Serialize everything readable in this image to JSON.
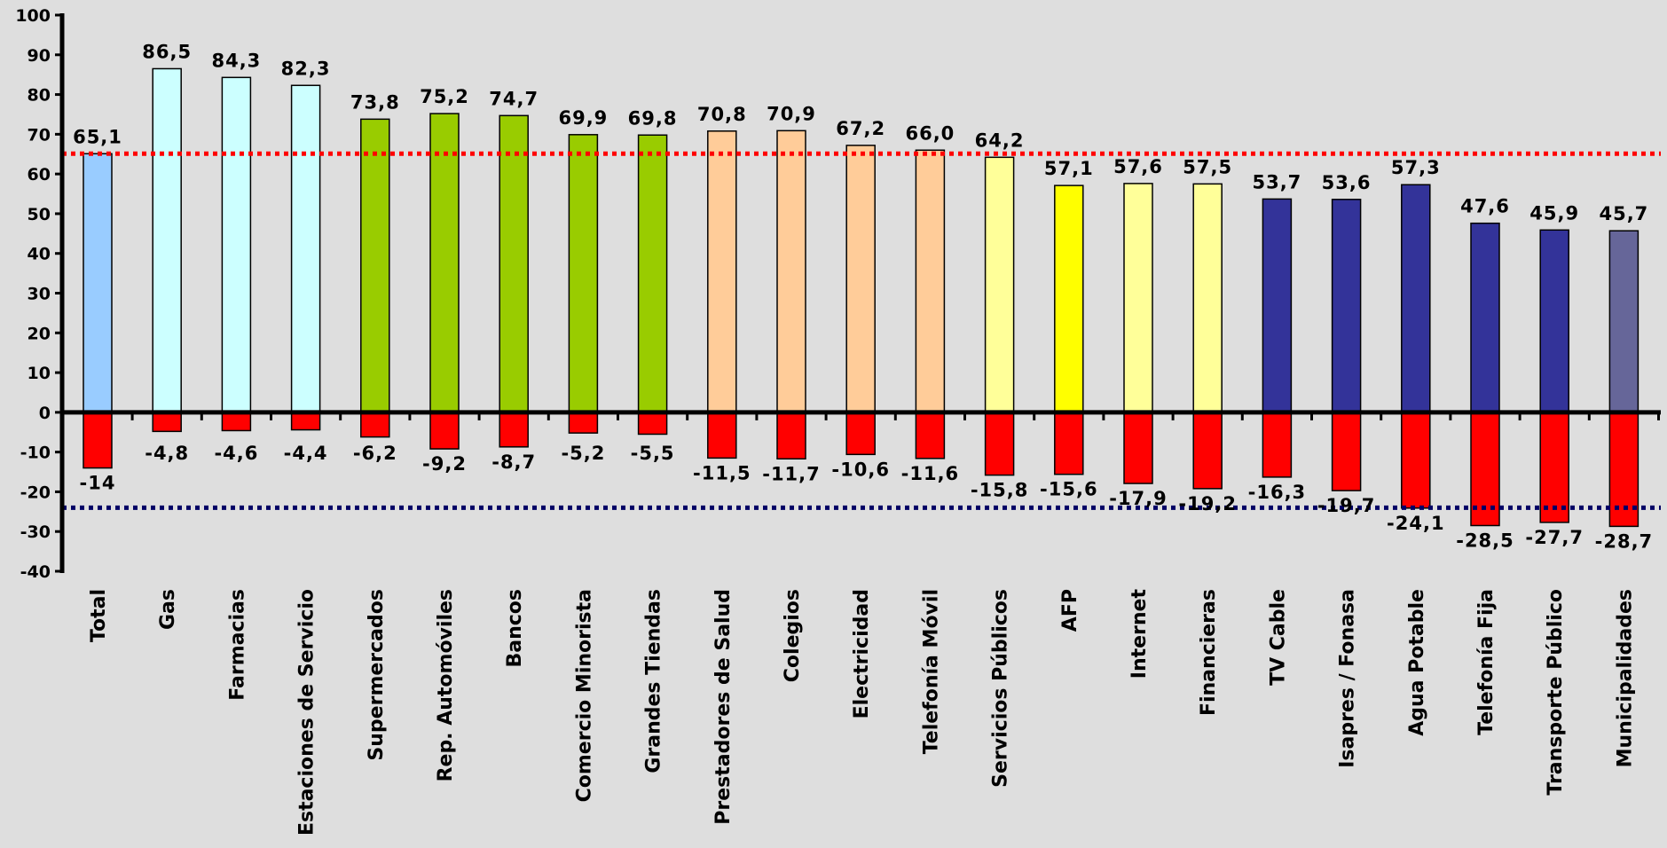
{
  "chart_data": {
    "type": "bar",
    "title": "",
    "xlabel": "",
    "ylabel": "",
    "ylim": [
      -40,
      100
    ],
    "yticks": [
      "100",
      "90",
      "80",
      "70",
      "60",
      "50",
      "40",
      "30",
      "20",
      "10",
      "0",
      "-10",
      "-20",
      "-30",
      "-40"
    ],
    "categories": [
      "Total",
      "Gas",
      "Farmacias",
      "Estaciones de Servicio",
      "Supermercados",
      "Rep. Automóviles",
      "Bancos",
      "Comercio Minorista",
      "Grandes Tiendas",
      "Prestadores de Salud",
      "Colegios",
      "Electricidad",
      "Telefonía Móvil",
      "Servicios Públicos",
      "AFP",
      "Internet",
      "Financieras",
      "TV Cable",
      "Isapres / Fonasa",
      "Agua Potable",
      "Telefonía Fija",
      "Transporte Público",
      "Municipalidades"
    ],
    "series": [
      {
        "values": [
          65.1,
          86.5,
          84.3,
          82.3,
          73.8,
          75.2,
          74.7,
          69.9,
          69.8,
          70.8,
          70.9,
          67.2,
          66.0,
          64.2,
          57.1,
          57.6,
          57.5,
          53.7,
          53.6,
          57.3,
          47.6,
          45.9,
          45.7
        ],
        "labels": [
          "65,1",
          "86,5",
          "84,3",
          "82,3",
          "73,8",
          "75,2",
          "74,7",
          "69,9",
          "69,8",
          "70,8",
          "70,9",
          "67,2",
          "66,0",
          "64,2",
          "57,1",
          "57,6",
          "57,5",
          "53,7",
          "53,6",
          "57,3",
          "47,6",
          "45,9",
          "45,7"
        ],
        "colors": [
          "#99ccff",
          "#ccffff",
          "#ccffff",
          "#ccffff",
          "#99cc00",
          "#99cc00",
          "#99cc00",
          "#99cc00",
          "#99cc00",
          "#ffcc99",
          "#ffcc99",
          "#ffcc99",
          "#ffcc99",
          "#ffff99",
          "#ffff00",
          "#ffff99",
          "#ffff99",
          "#333399",
          "#333399",
          "#333399",
          "#333399",
          "#333399",
          "#666699"
        ]
      },
      {
        "values": [
          -14,
          -4.8,
          -4.6,
          -4.4,
          -6.2,
          -9.2,
          -8.7,
          -5.2,
          -5.5,
          -11.5,
          -11.7,
          -10.6,
          -11.6,
          -15.8,
          -15.6,
          -17.9,
          -19.2,
          -16.3,
          -19.7,
          -24.1,
          -28.5,
          -27.7,
          -28.7
        ],
        "labels": [
          "-14",
          "-4,8",
          "-4,6",
          "-4,4",
          "-6,2",
          "-9,2",
          "-8,7",
          "-5,2",
          "-5,5",
          "-11,5",
          "-11,7",
          "-10,6",
          "-11,6",
          "-15,8",
          "-15,6",
          "-17,9",
          "-19,2",
          "-16,3",
          "-19,7",
          "-24,1",
          "-28,5",
          "-27,7",
          "-28,7"
        ],
        "color": "#ff0000"
      }
    ],
    "reference_lines": [
      {
        "value": 65.1,
        "color": "#ff0000",
        "style": "dotted"
      },
      {
        "value": -24,
        "color": "#000066",
        "style": "dotted"
      }
    ],
    "grid": false,
    "legend": "none"
  }
}
